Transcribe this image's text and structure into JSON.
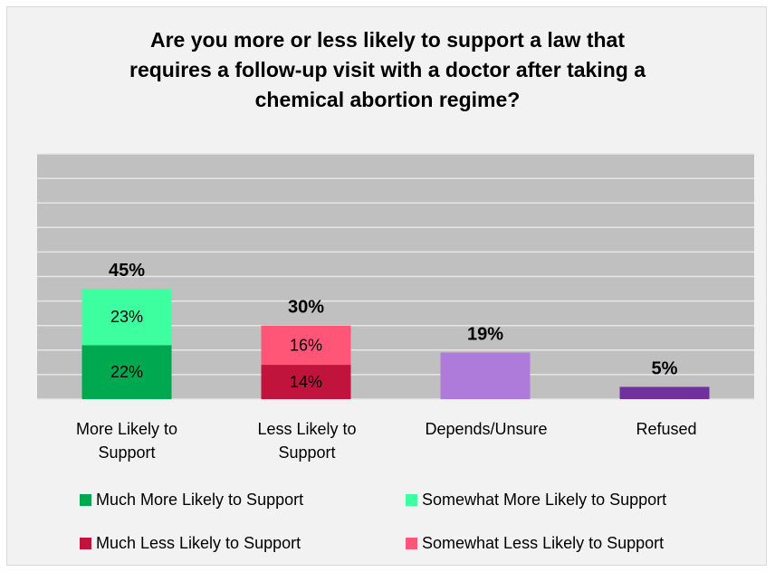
{
  "chart_data": {
    "type": "bar",
    "stacked": true,
    "title_lines": [
      "Are you more or less likely to support a law that",
      "requires a follow-up visit with a doctor after taking a",
      "chemical abortion regime?"
    ],
    "categories": [
      [
        "More Likely to",
        "Support"
      ],
      [
        "Less Likely to",
        "Support"
      ],
      [
        "Depends/Unsure"
      ],
      [
        "Refused"
      ]
    ],
    "ylim": [
      0,
      100
    ],
    "grid": true,
    "legend_position": "bottom",
    "series": [
      {
        "name": "Much More Likely to Support",
        "color": "#00a94f",
        "values": [
          22,
          null,
          null,
          null
        ],
        "labels": [
          "22%",
          null,
          null,
          null
        ]
      },
      {
        "name": "Somewhat More Likely to Support",
        "color": "#3dffa0",
        "values": [
          23,
          null,
          null,
          null
        ],
        "labels": [
          "23%",
          null,
          null,
          null
        ]
      },
      {
        "name": "Much Less Likely to Support",
        "color": "#c0143c",
        "values": [
          null,
          14,
          null,
          null
        ],
        "labels": [
          null,
          "14%",
          null,
          null
        ]
      },
      {
        "name": "Somewhat Less Likely to Support",
        "color": "#ff5577",
        "values": [
          null,
          16,
          null,
          null
        ],
        "labels": [
          null,
          "16%",
          null,
          null
        ]
      },
      {
        "name": "Depends/Unsure",
        "color": "#ae7bdb",
        "values": [
          null,
          null,
          19,
          null
        ],
        "labels": [
          null,
          null,
          null,
          null
        ]
      },
      {
        "name": "Refused",
        "color": "#7030a0",
        "values": [
          null,
          null,
          null,
          5
        ],
        "labels": [
          null,
          null,
          null,
          null
        ]
      }
    ],
    "totals": [
      "45%",
      "30%",
      "19%",
      "5%"
    ],
    "legend_series": [
      0,
      1,
      2,
      3
    ]
  }
}
